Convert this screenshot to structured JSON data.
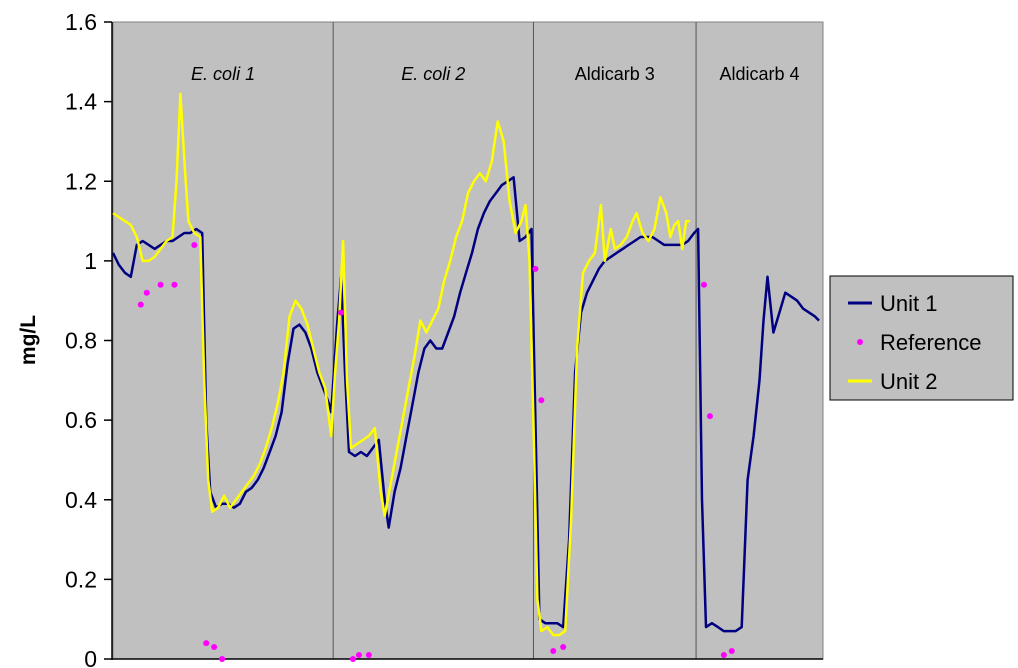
{
  "chart_data": {
    "type": "line",
    "ylabel": "mg/L",
    "xlabel": "",
    "ylim": [
      0,
      1.6
    ],
    "yticks": [
      "0",
      "0.2",
      "0.4",
      "0.6",
      "0.8",
      "1",
      "1.2",
      "1.4",
      "1.6"
    ],
    "grid": false,
    "legend_position": "right",
    "sections": [
      {
        "label": "E. coli 1",
        "italic": true,
        "range": [
          0,
          111
        ]
      },
      {
        "label": "E. coli 2",
        "italic": true,
        "range": [
          111,
          212
        ]
      },
      {
        "label": "Aldicarb 3",
        "italic": false,
        "range": [
          212,
          294
        ]
      },
      {
        "label": "Aldicarb 4",
        "italic": false,
        "range": [
          294,
          358
        ]
      }
    ],
    "x_range": [
      0,
      358
    ],
    "series": [
      {
        "name": "Unit 1",
        "style": "line",
        "color": "#000080",
        "points": [
          [
            0,
            1.02
          ],
          [
            3,
            0.99
          ],
          [
            6,
            0.97
          ],
          [
            9,
            0.96
          ],
          [
            12,
            1.04
          ],
          [
            15,
            1.05
          ],
          [
            18,
            1.04
          ],
          [
            21,
            1.03
          ],
          [
            24,
            1.04
          ],
          [
            27,
            1.05
          ],
          [
            30,
            1.05
          ],
          [
            33,
            1.06
          ],
          [
            36,
            1.07
          ],
          [
            39,
            1.07
          ],
          [
            42,
            1.08
          ],
          [
            45,
            1.07
          ],
          [
            47,
            0.6
          ],
          [
            49,
            0.42
          ],
          [
            52,
            0.38
          ],
          [
            55,
            0.39
          ],
          [
            58,
            0.39
          ],
          [
            61,
            0.38
          ],
          [
            64,
            0.39
          ],
          [
            67,
            0.42
          ],
          [
            70,
            0.43
          ],
          [
            73,
            0.45
          ],
          [
            76,
            0.48
          ],
          [
            79,
            0.52
          ],
          [
            82,
            0.56
          ],
          [
            85,
            0.62
          ],
          [
            88,
            0.74
          ],
          [
            91,
            0.83
          ],
          [
            94,
            0.84
          ],
          [
            97,
            0.82
          ],
          [
            100,
            0.78
          ],
          [
            103,
            0.72
          ],
          [
            106,
            0.68
          ],
          [
            109,
            0.64
          ],
          [
            110,
            0.62
          ],
          [
            113,
            0.84
          ],
          [
            115,
            0.96
          ],
          [
            117,
            0.72
          ],
          [
            119,
            0.52
          ],
          [
            122,
            0.51
          ],
          [
            125,
            0.52
          ],
          [
            128,
            0.51
          ],
          [
            131,
            0.53
          ],
          [
            134,
            0.55
          ],
          [
            137,
            0.4
          ],
          [
            139,
            0.33
          ],
          [
            142,
            0.42
          ],
          [
            145,
            0.48
          ],
          [
            148,
            0.56
          ],
          [
            151,
            0.64
          ],
          [
            154,
            0.72
          ],
          [
            157,
            0.78
          ],
          [
            160,
            0.8
          ],
          [
            163,
            0.78
          ],
          [
            166,
            0.78
          ],
          [
            169,
            0.82
          ],
          [
            172,
            0.86
          ],
          [
            175,
            0.92
          ],
          [
            178,
            0.97
          ],
          [
            181,
            1.02
          ],
          [
            184,
            1.08
          ],
          [
            187,
            1.12
          ],
          [
            190,
            1.15
          ],
          [
            193,
            1.17
          ],
          [
            196,
            1.19
          ],
          [
            199,
            1.2
          ],
          [
            202,
            1.21
          ],
          [
            205,
            1.05
          ],
          [
            208,
            1.06
          ],
          [
            211,
            1.08
          ],
          [
            213,
            0.6
          ],
          [
            215,
            0.1
          ],
          [
            218,
            0.09
          ],
          [
            221,
            0.09
          ],
          [
            224,
            0.09
          ],
          [
            227,
            0.08
          ],
          [
            230,
            0.3
          ],
          [
            233,
            0.72
          ],
          [
            236,
            0.87
          ],
          [
            239,
            0.92
          ],
          [
            242,
            0.95
          ],
          [
            245,
            0.98
          ],
          [
            248,
            1.0
          ],
          [
            251,
            1.01
          ],
          [
            254,
            1.02
          ],
          [
            257,
            1.03
          ],
          [
            260,
            1.04
          ],
          [
            263,
            1.05
          ],
          [
            266,
            1.06
          ],
          [
            269,
            1.06
          ],
          [
            272,
            1.06
          ],
          [
            275,
            1.05
          ],
          [
            278,
            1.04
          ],
          [
            281,
            1.04
          ],
          [
            284,
            1.04
          ],
          [
            287,
            1.04
          ],
          [
            290,
            1.05
          ],
          [
            293,
            1.07
          ],
          [
            295,
            1.08
          ],
          [
            297,
            0.4
          ],
          [
            299,
            0.08
          ],
          [
            302,
            0.09
          ],
          [
            305,
            0.08
          ],
          [
            308,
            0.07
          ],
          [
            311,
            0.07
          ],
          [
            314,
            0.07
          ],
          [
            317,
            0.08
          ],
          [
            320,
            0.45
          ],
          [
            323,
            0.56
          ],
          [
            326,
            0.7
          ],
          [
            328,
            0.85
          ],
          [
            330,
            0.96
          ],
          [
            333,
            0.82
          ],
          [
            336,
            0.87
          ],
          [
            339,
            0.92
          ],
          [
            342,
            0.91
          ],
          [
            345,
            0.9
          ],
          [
            348,
            0.88
          ],
          [
            351,
            0.87
          ],
          [
            354,
            0.86
          ],
          [
            356,
            0.85
          ]
        ]
      },
      {
        "name": "Reference",
        "style": "marker",
        "color": "#ff00ff",
        "points": [
          [
            14,
            0.89
          ],
          [
            17,
            0.92
          ],
          [
            24,
            0.94
          ],
          [
            31,
            0.94
          ],
          [
            41,
            1.04
          ],
          [
            47,
            0.04
          ],
          [
            51,
            0.03
          ],
          [
            55,
            0.0
          ],
          [
            115,
            0.87
          ],
          [
            121,
            0.0
          ],
          [
            124,
            0.01
          ],
          [
            129,
            0.01
          ],
          [
            213,
            0.98
          ],
          [
            216,
            0.65
          ],
          [
            222,
            0.02
          ],
          [
            227,
            0.03
          ],
          [
            298,
            0.94
          ],
          [
            301,
            0.61
          ],
          [
            308,
            0.01
          ],
          [
            312,
            0.02
          ]
        ]
      },
      {
        "name": "Unit 2",
        "style": "line",
        "color": "#ffff00",
        "points": [
          [
            0,
            1.12
          ],
          [
            3,
            1.11
          ],
          [
            6,
            1.1
          ],
          [
            9,
            1.09
          ],
          [
            12,
            1.06
          ],
          [
            15,
            1.0
          ],
          [
            18,
            1.0
          ],
          [
            21,
            1.01
          ],
          [
            24,
            1.03
          ],
          [
            27,
            1.05
          ],
          [
            30,
            1.06
          ],
          [
            32,
            1.2
          ],
          [
            34,
            1.42
          ],
          [
            36,
            1.25
          ],
          [
            38,
            1.1
          ],
          [
            41,
            1.07
          ],
          [
            44,
            1.06
          ],
          [
            46,
            0.7
          ],
          [
            48,
            0.45
          ],
          [
            50,
            0.37
          ],
          [
            53,
            0.38
          ],
          [
            56,
            0.41
          ],
          [
            59,
            0.38
          ],
          [
            62,
            0.4
          ],
          [
            65,
            0.42
          ],
          [
            68,
            0.44
          ],
          [
            71,
            0.46
          ],
          [
            74,
            0.49
          ],
          [
            77,
            0.53
          ],
          [
            80,
            0.58
          ],
          [
            83,
            0.64
          ],
          [
            86,
            0.72
          ],
          [
            89,
            0.86
          ],
          [
            92,
            0.9
          ],
          [
            95,
            0.88
          ],
          [
            98,
            0.84
          ],
          [
            101,
            0.78
          ],
          [
            104,
            0.72
          ],
          [
            107,
            0.68
          ],
          [
            110,
            0.56
          ],
          [
            112,
            0.72
          ],
          [
            114,
            0.85
          ],
          [
            116,
            1.05
          ],
          [
            118,
            0.7
          ],
          [
            120,
            0.53
          ],
          [
            123,
            0.54
          ],
          [
            126,
            0.55
          ],
          [
            129,
            0.56
          ],
          [
            132,
            0.58
          ],
          [
            135,
            0.42
          ],
          [
            137,
            0.36
          ],
          [
            140,
            0.44
          ],
          [
            143,
            0.52
          ],
          [
            146,
            0.6
          ],
          [
            149,
            0.68
          ],
          [
            152,
            0.76
          ],
          [
            155,
            0.85
          ],
          [
            158,
            0.82
          ],
          [
            161,
            0.85
          ],
          [
            164,
            0.88
          ],
          [
            167,
            0.95
          ],
          [
            170,
            1.0
          ],
          [
            173,
            1.06
          ],
          [
            176,
            1.1
          ],
          [
            179,
            1.17
          ],
          [
            182,
            1.2
          ],
          [
            185,
            1.22
          ],
          [
            188,
            1.2
          ],
          [
            191,
            1.25
          ],
          [
            194,
            1.35
          ],
          [
            197,
            1.3
          ],
          [
            200,
            1.15
          ],
          [
            203,
            1.07
          ],
          [
            206,
            1.1
          ],
          [
            208,
            1.14
          ],
          [
            210,
            1.0
          ],
          [
            212,
            0.6
          ],
          [
            214,
            0.15
          ],
          [
            216,
            0.07
          ],
          [
            219,
            0.08
          ],
          [
            222,
            0.06
          ],
          [
            225,
            0.06
          ],
          [
            228,
            0.07
          ],
          [
            231,
            0.35
          ],
          [
            234,
            0.78
          ],
          [
            237,
            0.97
          ],
          [
            240,
            1.0
          ],
          [
            243,
            1.02
          ],
          [
            246,
            1.14
          ],
          [
            248,
            1.0
          ],
          [
            251,
            1.08
          ],
          [
            253,
            1.03
          ],
          [
            256,
            1.04
          ],
          [
            259,
            1.06
          ],
          [
            262,
            1.1
          ],
          [
            264,
            1.12
          ],
          [
            267,
            1.07
          ],
          [
            270,
            1.05
          ],
          [
            273,
            1.08
          ],
          [
            276,
            1.16
          ],
          [
            279,
            1.12
          ],
          [
            281,
            1.06
          ],
          [
            283,
            1.09
          ],
          [
            285,
            1.1
          ],
          [
            287,
            1.03
          ],
          [
            289,
            1.1
          ],
          [
            291,
            1.1
          ]
        ]
      }
    ]
  }
}
